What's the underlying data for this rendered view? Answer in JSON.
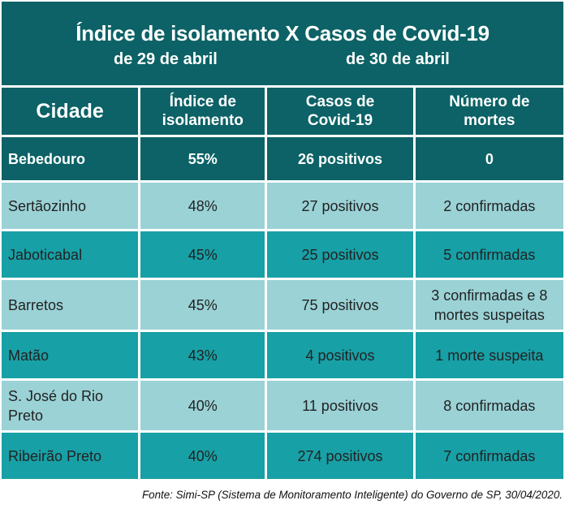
{
  "header": {
    "title": "Índice de isolamento X Casos de Covid-19",
    "subtitle_left": "de 29 de abril",
    "subtitle_right": "de 30 de abril"
  },
  "chart_data": {
    "type": "table",
    "columns": [
      "Cidade",
      "Índice de isolamento",
      "Casos de Covid-19",
      "Número de mortes"
    ],
    "rows": [
      {
        "cidade": "Bebedouro",
        "indice": "55%",
        "casos": "26 positivos",
        "mortes": "0"
      },
      {
        "cidade": "Sertãozinho",
        "indice": "48%",
        "casos": "27 positivos",
        "mortes": "2 confirmadas"
      },
      {
        "cidade": "Jaboticabal",
        "indice": "45%",
        "casos": "25 positivos",
        "mortes": "5 confirmadas"
      },
      {
        "cidade": "Barretos",
        "indice": "45%",
        "casos": "75 positivos",
        "mortes": "3 confirmadas e 8 mortes suspeitas"
      },
      {
        "cidade": "Matão",
        "indice": "43%",
        "casos": "4 positivos",
        "mortes": "1 morte suspeita"
      },
      {
        "cidade": "S. José do Rio Preto",
        "indice": "40%",
        "casos": "11 positivos",
        "mortes": "8 confirmadas"
      },
      {
        "cidade": "Ribeirão Preto",
        "indice": "40%",
        "casos": "274 positivos",
        "mortes": "7 confirmadas"
      }
    ]
  },
  "colors": {
    "header_bg": "#0c6266",
    "row_light": "#9ad2d6",
    "row_dark": "#17a0a6"
  },
  "footer": {
    "source": "Fonte: Simi-SP (Sistema de Monitoramento Inteligente) do Governo de SP, 30/04/2020."
  }
}
